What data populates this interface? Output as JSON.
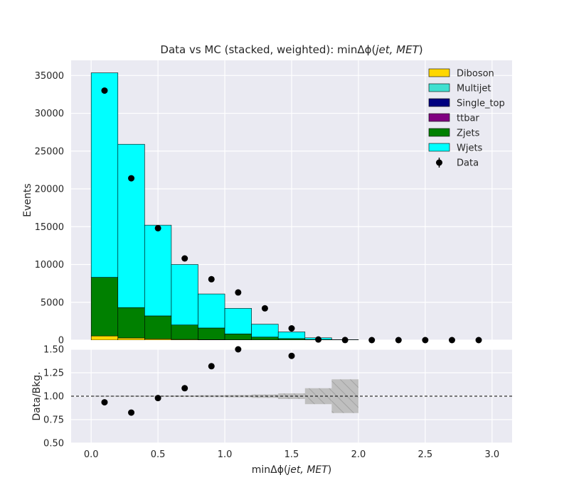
{
  "chart_data": [
    {
      "type": "bar",
      "stacked": true,
      "title": "Data vs MC (stacked, weighted): minΔϕ(jet, MET)",
      "title_prefix": "Data vs MC (stacked, weighted): ",
      "title_math": "minΔϕ(",
      "title_vars": "jet, MET",
      "title_close": ")",
      "ylabel": "Events",
      "xlim": [
        -0.15,
        3.15
      ],
      "ylim": [
        0,
        37000
      ],
      "bin_edges": [
        0.0,
        0.2,
        0.4,
        0.6,
        0.8,
        1.0,
        1.2,
        1.4,
        1.6,
        1.8,
        2.0,
        2.2,
        2.4,
        2.6,
        2.8,
        3.0
      ],
      "yticks": [
        0,
        5000,
        10000,
        15000,
        20000,
        25000,
        30000,
        35000
      ],
      "xticks": [
        0.0,
        0.5,
        1.0,
        1.5,
        2.0,
        2.5,
        3.0
      ],
      "xtick_labels": [
        "0.0",
        "0.5",
        "1.0",
        "1.5",
        "2.0",
        "2.5",
        "3.0"
      ],
      "series": [
        {
          "name": "Diboson",
          "color": "#FFD700",
          "values": [
            550,
            280,
            160,
            90,
            60,
            40,
            25,
            15,
            5,
            0,
            0,
            0,
            0,
            0,
            0
          ]
        },
        {
          "name": "Multijet",
          "color": "#40E0D0",
          "values": [
            0,
            0,
            0,
            0,
            0,
            0,
            0,
            0,
            0,
            0,
            0,
            0,
            0,
            0,
            0
          ]
        },
        {
          "name": "Single_top",
          "color": "#000080",
          "values": [
            0,
            0,
            0,
            0,
            0,
            0,
            0,
            0,
            0,
            0,
            0,
            0,
            0,
            0,
            0
          ]
        },
        {
          "name": "ttbar",
          "color": "#800080",
          "values": [
            0,
            0,
            0,
            0,
            0,
            0,
            0,
            0,
            0,
            0,
            0,
            0,
            0,
            0,
            0
          ]
        },
        {
          "name": "Zjets",
          "color": "#008000",
          "values": [
            7750,
            4020,
            3040,
            1910,
            1540,
            780,
            375,
            185,
            75,
            0,
            0,
            0,
            0,
            0,
            0
          ]
        },
        {
          "name": "Wjets",
          "color": "#00FFFF",
          "values": [
            27050,
            21600,
            12000,
            8000,
            4500,
            3380,
            1700,
            880,
            220,
            60,
            0,
            0,
            0,
            0,
            0
          ]
        }
      ],
      "data": {
        "name": "Data",
        "color": "#000000",
        "x": [
          0.1,
          0.3,
          0.5,
          0.7,
          0.9,
          1.1,
          1.3,
          1.5,
          1.7,
          1.9,
          2.1,
          2.3,
          2.5,
          2.7,
          2.9
        ],
        "values": [
          33000,
          21400,
          14800,
          10800,
          8050,
          6300,
          4200,
          1550,
          80,
          10,
          0,
          0,
          0,
          0,
          0
        ]
      },
      "legend_loc": "upper right"
    },
    {
      "type": "scatter",
      "ylabel": "Data/Bkg.",
      "xlabel_prefix": "minΔϕ(",
      "xlabel_vars": "jet, MET",
      "xlabel_close": ")",
      "xlim": [
        -0.15,
        3.15
      ],
      "ylim": [
        0.5,
        1.5
      ],
      "yticks": [
        0.5,
        0.75,
        1.0,
        1.25,
        1.5
      ],
      "ytick_labels": [
        "0.50",
        "0.75",
        "1.00",
        "1.25",
        "1.50"
      ],
      "xticks": [
        0.0,
        0.5,
        1.0,
        1.5,
        2.0,
        2.5,
        3.0
      ],
      "xtick_labels": [
        "0.0",
        "0.5",
        "1.0",
        "1.5",
        "2.0",
        "2.5",
        "3.0"
      ],
      "reference_line": 1.0,
      "ratio": {
        "x": [
          0.1,
          0.3,
          0.5,
          0.7,
          0.9,
          1.1,
          1.5
        ],
        "values": [
          0.935,
          0.825,
          0.98,
          1.085,
          1.32,
          1.505,
          1.43
        ]
      },
      "uncertainty": {
        "bin_edges": [
          0.0,
          0.2,
          0.4,
          0.6,
          0.8,
          1.0,
          1.2,
          1.4,
          1.6,
          1.8,
          2.0
        ],
        "half_width": [
          0.004,
          0.005,
          0.006,
          0.008,
          0.01,
          0.012,
          0.018,
          0.03,
          0.085,
          0.18
        ]
      }
    }
  ]
}
